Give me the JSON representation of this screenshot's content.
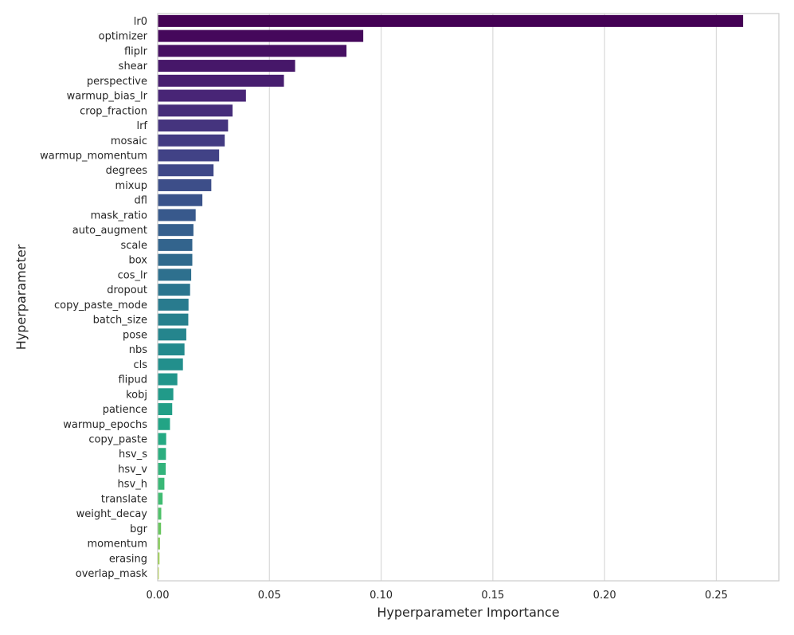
{
  "chart_data": {
    "type": "bar",
    "orientation": "horizontal",
    "xlabel": "Hyperparameter Importance",
    "ylabel": "Hyperparameter",
    "xlim": [
      0,
      0.278
    ],
    "xticks": [
      0.0,
      0.05,
      0.1,
      0.15,
      0.2,
      0.25
    ],
    "xtick_labels": [
      "0.00",
      "0.05",
      "0.10",
      "0.15",
      "0.20",
      "0.25"
    ],
    "grid": "vertical",
    "palette": "viridis",
    "categories": [
      "lr0",
      "optimizer",
      "fliplr",
      "shear",
      "perspective",
      "warmup_bias_lr",
      "crop_fraction",
      "lrf",
      "mosaic",
      "warmup_momentum",
      "degrees",
      "mixup",
      "dfl",
      "mask_ratio",
      "auto_augment",
      "scale",
      "box",
      "cos_lr",
      "dropout",
      "copy_paste_mode",
      "batch_size",
      "pose",
      "nbs",
      "cls",
      "flipud",
      "kobj",
      "patience",
      "warmup_epochs",
      "copy_paste",
      "hsv_s",
      "hsv_v",
      "hsv_h",
      "translate",
      "weight_decay",
      "bgr",
      "momentum",
      "erasing",
      "overlap_mask"
    ],
    "values": [
      0.262,
      0.092,
      0.0845,
      0.0615,
      0.0565,
      0.0395,
      0.0335,
      0.0315,
      0.03,
      0.0275,
      0.025,
      0.024,
      0.02,
      0.017,
      0.016,
      0.0155,
      0.0155,
      0.015,
      0.0145,
      0.0138,
      0.0137,
      0.0128,
      0.012,
      0.0113,
      0.0088,
      0.007,
      0.0065,
      0.0055,
      0.0038,
      0.0037,
      0.0036,
      0.003,
      0.0022,
      0.0016,
      0.0015,
      0.001,
      0.0008,
      0.0005
    ]
  }
}
